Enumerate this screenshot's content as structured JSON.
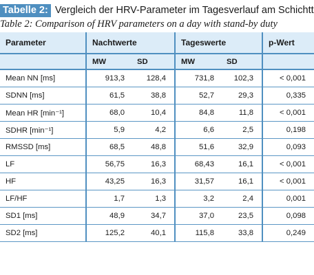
{
  "caption": {
    "badge": "Tabelle 2:",
    "title_de": "Vergleich der HRV-Parameter im Tagesverlauf am Schichttag",
    "title_en": "Table 2: Comparison of HRV parameters on a day with stand-by duty"
  },
  "table": {
    "headers": {
      "parameter": "Parameter",
      "night": "Nachtwerte",
      "day": "Tageswerte",
      "pvalue": "p-Wert"
    },
    "subheaders": {
      "night_mw": "MW",
      "night_sd": "SD",
      "day_mw": "MW",
      "day_sd": "SD"
    },
    "rows": [
      {
        "param": "Mean NN [ms]",
        "n_mw": "913,3",
        "n_sd": "128,4",
        "d_mw": "731,8",
        "d_sd": "102,3",
        "p": "< 0,001"
      },
      {
        "param": "SDNN [ms]",
        "n_mw": "61,5",
        "n_sd": "38,8",
        "d_mw": "52,7",
        "d_sd": "29,3",
        "p": "0,335"
      },
      {
        "param": "Mean HR [min⁻¹]",
        "n_mw": "68,0",
        "n_sd": "10,4",
        "d_mw": "84,8",
        "d_sd": "11,8",
        "p": "< 0,001"
      },
      {
        "param": "SDHR [min⁻¹]",
        "n_mw": "5,9",
        "n_sd": "4,2",
        "d_mw": "6,6",
        "d_sd": "2,5",
        "p": "0,198"
      },
      {
        "param": "RMSSD [ms]",
        "n_mw": "68,5",
        "n_sd": "48,8",
        "d_mw": "51,6",
        "d_sd": "32,9",
        "p": "0,093"
      },
      {
        "param": "LF",
        "n_mw": "56,75",
        "n_sd": "16,3",
        "d_mw": "68,43",
        "d_sd": "16,1",
        "p": "< 0,001"
      },
      {
        "param": "HF",
        "n_mw": "43,25",
        "n_sd": "16,3",
        "d_mw": "31,57",
        "d_sd": "16,1",
        "p": "< 0,001"
      },
      {
        "param": "LF/HF",
        "n_mw": "1,7",
        "n_sd": "1,3",
        "d_mw": "3,2",
        "d_sd": "2,4",
        "p": "0,001"
      },
      {
        "param": "SD1 [ms]",
        "n_mw": "48,9",
        "n_sd": "34,7",
        "d_mw": "37,0",
        "d_sd": "23,5",
        "p": "0,098"
      },
      {
        "param": "SD2 [ms]",
        "n_mw": "125,2",
        "n_sd": "40,1",
        "d_mw": "115,8",
        "d_sd": "33,8",
        "p": "0,249"
      }
    ]
  },
  "colors": {
    "accent": "#4f8fc0",
    "header_bg": "#dcecf8"
  }
}
